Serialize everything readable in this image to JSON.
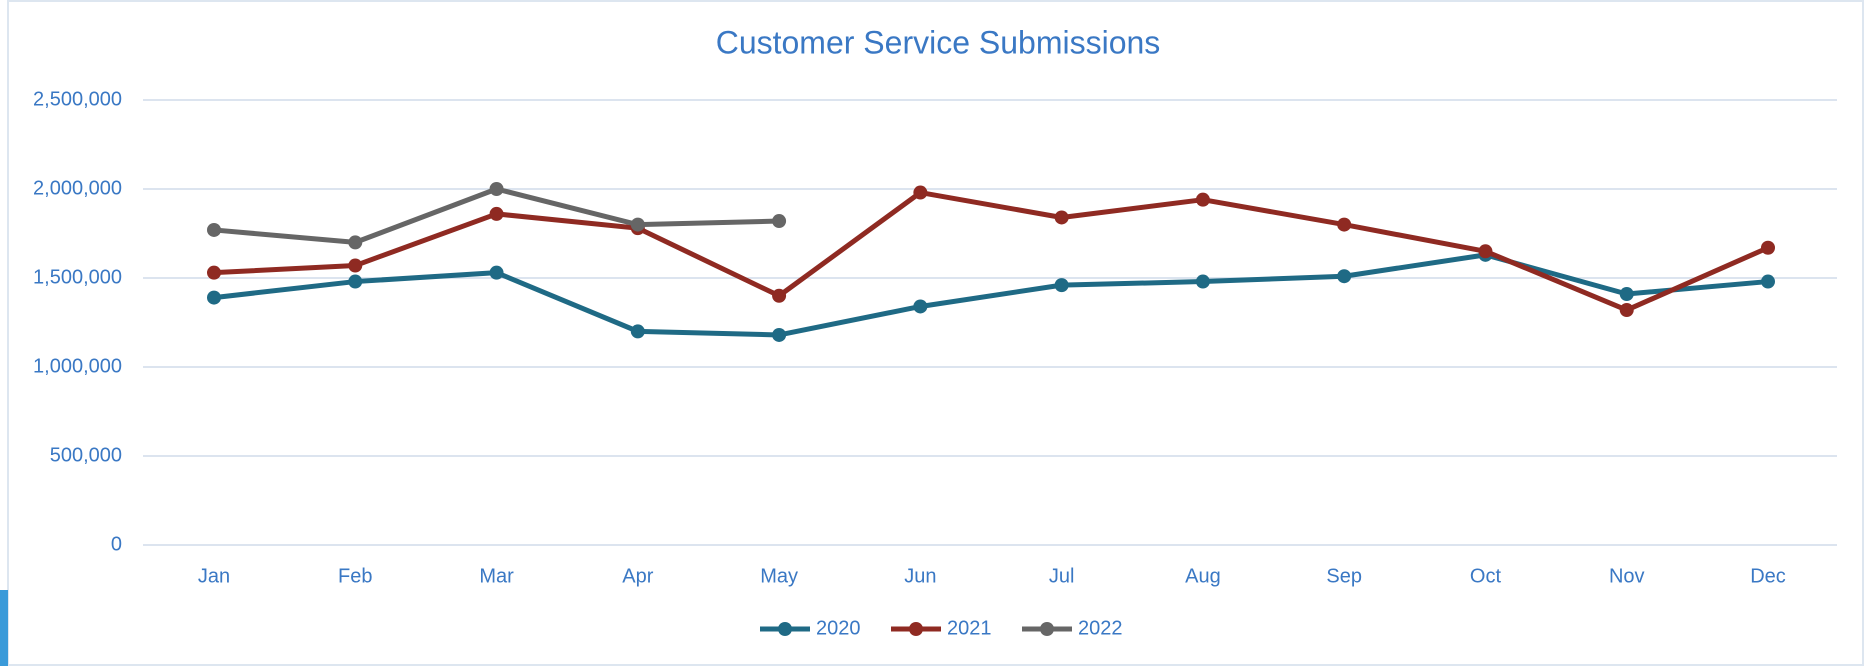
{
  "chart_data": {
    "type": "line",
    "title": "Customer Service Submissions",
    "categories": [
      "Jan",
      "Feb",
      "Mar",
      "Apr",
      "May",
      "Jun",
      "Jul",
      "Aug",
      "Sep",
      "Oct",
      "Nov",
      "Dec"
    ],
    "series": [
      {
        "name": "2020",
        "color": "#1f6a85",
        "values": [
          1390000,
          1480000,
          1530000,
          1200000,
          1180000,
          1340000,
          1460000,
          1480000,
          1510000,
          1630000,
          1410000,
          1480000
        ]
      },
      {
        "name": "2021",
        "color": "#8f2a22",
        "values": [
          1530000,
          1570000,
          1860000,
          1780000,
          1400000,
          1980000,
          1840000,
          1940000,
          1800000,
          1650000,
          1320000,
          1670000
        ]
      },
      {
        "name": "2022",
        "color": "#666666",
        "values": [
          1770000,
          1700000,
          2000000,
          1800000,
          1820000,
          null,
          null,
          null,
          null,
          null,
          null,
          null
        ]
      }
    ],
    "ylim": [
      0,
      2500000
    ],
    "yticks": [
      0,
      {
        "value": 500000,
        "label": "500,000"
      },
      {
        "value": 1000000,
        "label": "1,000,000"
      },
      {
        "value": 1500000,
        "label": "1,500,000"
      },
      {
        "value": 2000000,
        "label": "2,000,000"
      },
      {
        "value": 2500000,
        "label": "2,500,000"
      }
    ],
    "grid": true,
    "legend": "bottom"
  }
}
